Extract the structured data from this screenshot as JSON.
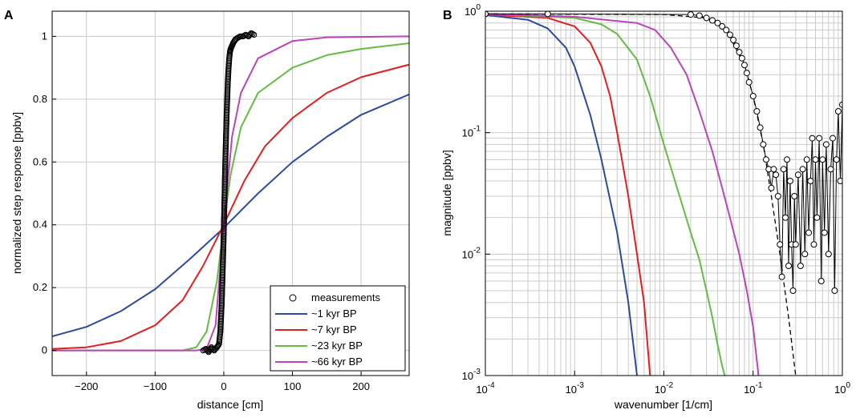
{
  "chart_data": [
    {
      "type": "line",
      "panel_label": "A",
      "title": "",
      "xlabel": "distance [cm]",
      "ylabel": "normalized step response [ppbv]",
      "xlim": [
        -250,
        270
      ],
      "ylim": [
        -0.08,
        1.08
      ],
      "xticks": [
        -200,
        -100,
        0,
        100,
        200
      ],
      "xtick_labels": [
        "−200",
        "−100",
        "0",
        "100",
        "200"
      ],
      "yticks": [
        0,
        0.2,
        0.4,
        0.6,
        0.8,
        1
      ],
      "ytick_labels": [
        "0",
        "0.2",
        "0.4",
        "0.6",
        "0.8",
        "1"
      ],
      "grid": true,
      "legend_position": "bottom-right",
      "measurements": {
        "name": "measurements",
        "marker": "circle",
        "color": "#000000",
        "x_range": [
          -30,
          45
        ],
        "points": [
          [
            -30,
            0
          ],
          [
            -26,
            0.005
          ],
          [
            -22,
            -0.005
          ],
          [
            -18,
            0.01
          ],
          [
            -14,
            0
          ],
          [
            -10,
            0.01
          ],
          [
            -7,
            0.02
          ],
          [
            -5,
            0.06
          ],
          [
            -3,
            0.15
          ],
          [
            -1,
            0.3
          ],
          [
            0,
            0.38
          ],
          [
            1,
            0.48
          ],
          [
            2,
            0.58
          ],
          [
            3,
            0.66
          ],
          [
            4,
            0.74
          ],
          [
            5,
            0.8
          ],
          [
            6,
            0.86
          ],
          [
            7,
            0.9
          ],
          [
            8,
            0.93
          ],
          [
            9,
            0.95
          ],
          [
            10,
            0.96
          ],
          [
            12,
            0.97
          ],
          [
            14,
            0.98
          ],
          [
            17,
            0.99
          ],
          [
            20,
            0.995
          ],
          [
            24,
            1.0
          ],
          [
            28,
            1.0
          ],
          [
            32,
            1.005
          ],
          [
            36,
            1.0
          ],
          [
            40,
            1.01
          ],
          [
            44,
            1.005
          ]
        ]
      },
      "series": [
        {
          "name": "~1 kyr BP",
          "color": "#2e4a9e",
          "points": [
            [
              -250,
              0.045
            ],
            [
              -200,
              0.075
            ],
            [
              -150,
              0.125
            ],
            [
              -100,
              0.195
            ],
            [
              -50,
              0.29
            ],
            [
              0,
              0.39
            ],
            [
              50,
              0.5
            ],
            [
              100,
              0.6
            ],
            [
              150,
              0.68
            ],
            [
              200,
              0.75
            ],
            [
              270,
              0.815
            ]
          ]
        },
        {
          "name": "~7 kyr BP",
          "color": "#e02020",
          "points": [
            [
              -250,
              0.005
            ],
            [
              -200,
              0.01
            ],
            [
              -150,
              0.03
            ],
            [
              -100,
              0.08
            ],
            [
              -60,
              0.16
            ],
            [
              -30,
              0.27
            ],
            [
              0,
              0.4
            ],
            [
              30,
              0.54
            ],
            [
              60,
              0.65
            ],
            [
              100,
              0.74
            ],
            [
              150,
              0.82
            ],
            [
              200,
              0.87
            ],
            [
              270,
              0.91
            ]
          ]
        },
        {
          "name": "~23 kyr BP",
          "color": "#66bb44",
          "points": [
            [
              -250,
              0
            ],
            [
              -60,
              0
            ],
            [
              -40,
              0.01
            ],
            [
              -25,
              0.06
            ],
            [
              -10,
              0.22
            ],
            [
              0,
              0.4
            ],
            [
              10,
              0.56
            ],
            [
              25,
              0.71
            ],
            [
              50,
              0.82
            ],
            [
              100,
              0.9
            ],
            [
              150,
              0.94
            ],
            [
              200,
              0.96
            ],
            [
              270,
              0.978
            ]
          ]
        },
        {
          "name": "~66 kyr BP",
          "color": "#bb44bb",
          "points": [
            [
              -250,
              0
            ],
            [
              -40,
              0
            ],
            [
              -25,
              0.005
            ],
            [
              -12,
              0.08
            ],
            [
              0,
              0.4
            ],
            [
              12,
              0.68
            ],
            [
              25,
              0.82
            ],
            [
              50,
              0.93
            ],
            [
              100,
              0.985
            ],
            [
              150,
              0.997
            ],
            [
              270,
              1.0
            ]
          ]
        }
      ]
    },
    {
      "type": "line",
      "panel_label": "B",
      "title": "",
      "xlabel": "wavenumber [1/cm]",
      "ylabel": "magnitude [ppbv]",
      "xscale": "log",
      "yscale": "log",
      "xlim": [
        0.0001,
        1
      ],
      "ylim": [
        0.001,
        1
      ],
      "xtick_exponents": [
        "-4",
        "-3",
        "-2",
        "-1",
        "0"
      ],
      "ytick_exponents": [
        "-3",
        "-2",
        "-1",
        "0"
      ],
      "tick_base": "10",
      "grid": true,
      "measurements": {
        "marker": "circle",
        "color": "#000000",
        "points": [
          [
            0.0001,
            0.95
          ],
          [
            0.0005,
            0.95
          ],
          [
            0.02,
            0.94
          ],
          [
            0.025,
            0.92
          ],
          [
            0.03,
            0.88
          ],
          [
            0.035,
            0.84
          ],
          [
            0.04,
            0.8
          ],
          [
            0.045,
            0.75
          ],
          [
            0.05,
            0.7
          ],
          [
            0.055,
            0.64
          ],
          [
            0.06,
            0.58
          ],
          [
            0.065,
            0.52
          ],
          [
            0.07,
            0.46
          ],
          [
            0.075,
            0.41
          ],
          [
            0.08,
            0.36
          ],
          [
            0.085,
            0.31
          ],
          [
            0.09,
            0.26
          ],
          [
            0.1,
            0.2
          ],
          [
            0.11,
            0.15
          ],
          [
            0.12,
            0.11
          ],
          [
            0.13,
            0.08
          ],
          [
            0.14,
            0.06
          ],
          [
            0.15,
            0.05
          ],
          [
            0.16,
            0.035
          ],
          [
            0.17,
            0.05
          ],
          [
            0.18,
            0.045
          ],
          [
            0.19,
            0.03
          ],
          [
            0.2,
            0.012
          ],
          [
            0.21,
            0.0065
          ],
          [
            0.22,
            0.05
          ],
          [
            0.23,
            0.02
          ],
          [
            0.24,
            0.06
          ],
          [
            0.25,
            0.008
          ],
          [
            0.26,
            0.04
          ],
          [
            0.27,
            0.012
          ],
          [
            0.28,
            0.005
          ],
          [
            0.29,
            0.03
          ],
          [
            0.3,
            0.012
          ],
          [
            0.32,
            0.045
          ],
          [
            0.34,
            0.008
          ],
          [
            0.36,
            0.05
          ],
          [
            0.38,
            0.01
          ],
          [
            0.4,
            0.06
          ],
          [
            0.42,
            0.015
          ],
          [
            0.44,
            0.04
          ],
          [
            0.46,
            0.09
          ],
          [
            0.48,
            0.012
          ],
          [
            0.5,
            0.06
          ],
          [
            0.52,
            0.02
          ],
          [
            0.55,
            0.09
          ],
          [
            0.58,
            0.006
          ],
          [
            0.6,
            0.06
          ],
          [
            0.63,
            0.015
          ],
          [
            0.66,
            0.08
          ],
          [
            0.7,
            0.01
          ],
          [
            0.74,
            0.05
          ],
          [
            0.78,
            0.09
          ],
          [
            0.82,
            0.005
          ],
          [
            0.86,
            0.06
          ],
          [
            0.9,
            0.15
          ],
          [
            0.95,
            0.04
          ],
          [
            1.0,
            0.17
          ]
        ]
      },
      "dashed_fit": {
        "color": "#000000",
        "style": "dashed",
        "points": [
          [
            0.0001,
            0.95
          ],
          [
            0.01,
            0.94
          ],
          [
            0.03,
            0.88
          ],
          [
            0.05,
            0.7
          ],
          [
            0.08,
            0.36
          ],
          [
            0.1,
            0.2
          ],
          [
            0.13,
            0.08
          ],
          [
            0.16,
            0.03
          ],
          [
            0.2,
            0.01
          ],
          [
            0.25,
            0.003
          ],
          [
            0.3,
            0.001
          ]
        ]
      },
      "series": [
        {
          "name": "~1 kyr BP",
          "color": "#2e4a9e",
          "points": [
            [
              0.0001,
              0.93
            ],
            [
              0.0003,
              0.85
            ],
            [
              0.0005,
              0.72
            ],
            [
              0.0008,
              0.5
            ],
            [
              0.001,
              0.35
            ],
            [
              0.0015,
              0.14
            ],
            [
              0.002,
              0.06
            ],
            [
              0.003,
              0.015
            ],
            [
              0.004,
              0.004
            ],
            [
              0.005,
              0.001
            ]
          ]
        },
        {
          "name": "~7 kyr BP",
          "color": "#e02020",
          "points": [
            [
              0.0001,
              0.94
            ],
            [
              0.0005,
              0.88
            ],
            [
              0.001,
              0.75
            ],
            [
              0.0015,
              0.55
            ],
            [
              0.002,
              0.35
            ],
            [
              0.0025,
              0.2
            ],
            [
              0.003,
              0.1
            ],
            [
              0.004,
              0.03
            ],
            [
              0.005,
              0.01
            ],
            [
              0.006,
              0.004
            ],
            [
              0.007,
              0.001
            ]
          ]
        },
        {
          "name": "~23 kyr BP",
          "color": "#66bb44",
          "points": [
            [
              0.0001,
              0.95
            ],
            [
              0.001,
              0.88
            ],
            [
              0.002,
              0.78
            ],
            [
              0.003,
              0.65
            ],
            [
              0.005,
              0.4
            ],
            [
              0.007,
              0.2
            ],
            [
              0.01,
              0.08
            ],
            [
              0.015,
              0.03
            ],
            [
              0.02,
              0.015
            ],
            [
              0.025,
              0.009
            ],
            [
              0.03,
              0.005
            ],
            [
              0.035,
              0.003
            ],
            [
              0.04,
              0.0018
            ],
            [
              0.045,
              0.0012
            ],
            [
              0.048,
              0.001
            ]
          ]
        },
        {
          "name": "~66 kyr BP",
          "color": "#bb44bb",
          "points": [
            [
              0.0001,
              0.95
            ],
            [
              0.001,
              0.9
            ],
            [
              0.005,
              0.8
            ],
            [
              0.008,
              0.7
            ],
            [
              0.012,
              0.5
            ],
            [
              0.018,
              0.3
            ],
            [
              0.025,
              0.15
            ],
            [
              0.035,
              0.07
            ],
            [
              0.045,
              0.035
            ],
            [
              0.055,
              0.02
            ],
            [
              0.07,
              0.01
            ],
            [
              0.085,
              0.005
            ],
            [
              0.1,
              0.0025
            ],
            [
              0.115,
              0.001
            ]
          ]
        }
      ]
    }
  ]
}
